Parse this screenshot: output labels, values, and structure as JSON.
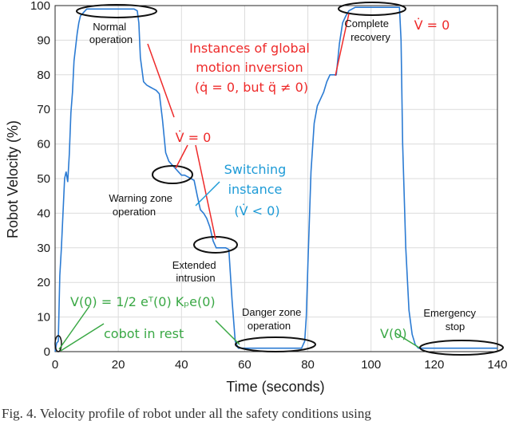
{
  "chart_data": {
    "type": "line",
    "xlabel": "Time (seconds)",
    "ylabel": "Robot Velocity (%)",
    "xlim": [
      0,
      140
    ],
    "ylim": [
      0,
      100
    ],
    "xticks": [
      "0",
      "20",
      "40",
      "60",
      "80",
      "100",
      "120",
      "140"
    ],
    "yticks": [
      "0",
      "10",
      "20",
      "30",
      "40",
      "50",
      "60",
      "70",
      "80",
      "90",
      "100"
    ],
    "grid": true,
    "line_color": "#2b7bd3",
    "series": [
      {
        "x": [
          0,
          0.5,
          1,
          1.5,
          2,
          2.5,
          3,
          3.5,
          4,
          4.5,
          5,
          5.5,
          6,
          6.5,
          7,
          7.5,
          8,
          9,
          10,
          12,
          15,
          20,
          25,
          26,
          26.5,
          27,
          28,
          29,
          30,
          31,
          32,
          33,
          34,
          35,
          36,
          37,
          38,
          39,
          40,
          41,
          42,
          43,
          44,
          45,
          46,
          47,
          48,
          49,
          50,
          51,
          52,
          53,
          54,
          55,
          56,
          57,
          58,
          59,
          60,
          62,
          65,
          70,
          75,
          78,
          79,
          79.5,
          80,
          81,
          82,
          83,
          84,
          85,
          86,
          87,
          88,
          89,
          90,
          91,
          92,
          93,
          94,
          95,
          96,
          98,
          100,
          105,
          108,
          109,
          109.5,
          110,
          111,
          112,
          113,
          114,
          115,
          116,
          117,
          118,
          120,
          125,
          130,
          135,
          140
        ],
        "y": [
          0,
          2.5,
          3,
          22,
          30,
          40,
          50,
          52,
          49,
          57,
          69,
          75,
          84,
          88,
          92,
          95,
          97,
          98,
          99,
          99,
          99,
          99,
          99,
          98.5,
          95,
          85,
          78,
          77,
          76.5,
          76,
          75.5,
          74.5,
          67,
          57.5,
          55,
          54,
          53,
          52,
          51,
          51,
          50.5,
          50,
          49.5,
          45,
          41,
          40,
          38.5,
          36,
          32,
          30,
          30,
          30,
          30,
          29.5,
          15,
          3,
          1,
          1,
          1,
          1,
          1,
          1,
          1,
          1,
          3,
          10,
          25,
          52,
          66,
          71,
          73,
          75,
          78,
          80,
          80,
          80,
          89,
          95,
          97,
          98.5,
          99,
          99.5,
          99.5,
          99.5,
          99.5,
          99.5,
          99.5,
          99.5,
          90,
          60,
          30,
          12,
          5,
          2,
          1,
          1,
          1,
          1,
          1,
          1,
          1,
          1,
          1
        ]
      }
    ]
  },
  "annotations": {
    "normal": [
      "Normal",
      "operation"
    ],
    "warning": [
      "Warning zone",
      "operation"
    ],
    "extended": [
      "Extended",
      "intrusion"
    ],
    "danger": [
      "Danger zone",
      "operation"
    ],
    "complete": [
      "Complete",
      "recovery"
    ],
    "emergency": [
      "Emergency",
      "stop"
    ],
    "global_motion": [
      "Instances of global",
      "motion inversion",
      "(q̇ = 0, but q̈ ≠ 0)"
    ],
    "vdot_zero_mid": "V̇ = 0",
    "vdot_zero_top": "V̇ = 0",
    "switching": [
      "Switching",
      "instance",
      "(V̇ < 0)"
    ],
    "v0_formula": "V(0) = 1/2 eᵀ(0) Kₚe(0)",
    "cobot_rest": "cobot in rest",
    "v0_right": "V(0)"
  },
  "caption": "Fig. 4. Velocity profile of robot under all the safety conditions using"
}
